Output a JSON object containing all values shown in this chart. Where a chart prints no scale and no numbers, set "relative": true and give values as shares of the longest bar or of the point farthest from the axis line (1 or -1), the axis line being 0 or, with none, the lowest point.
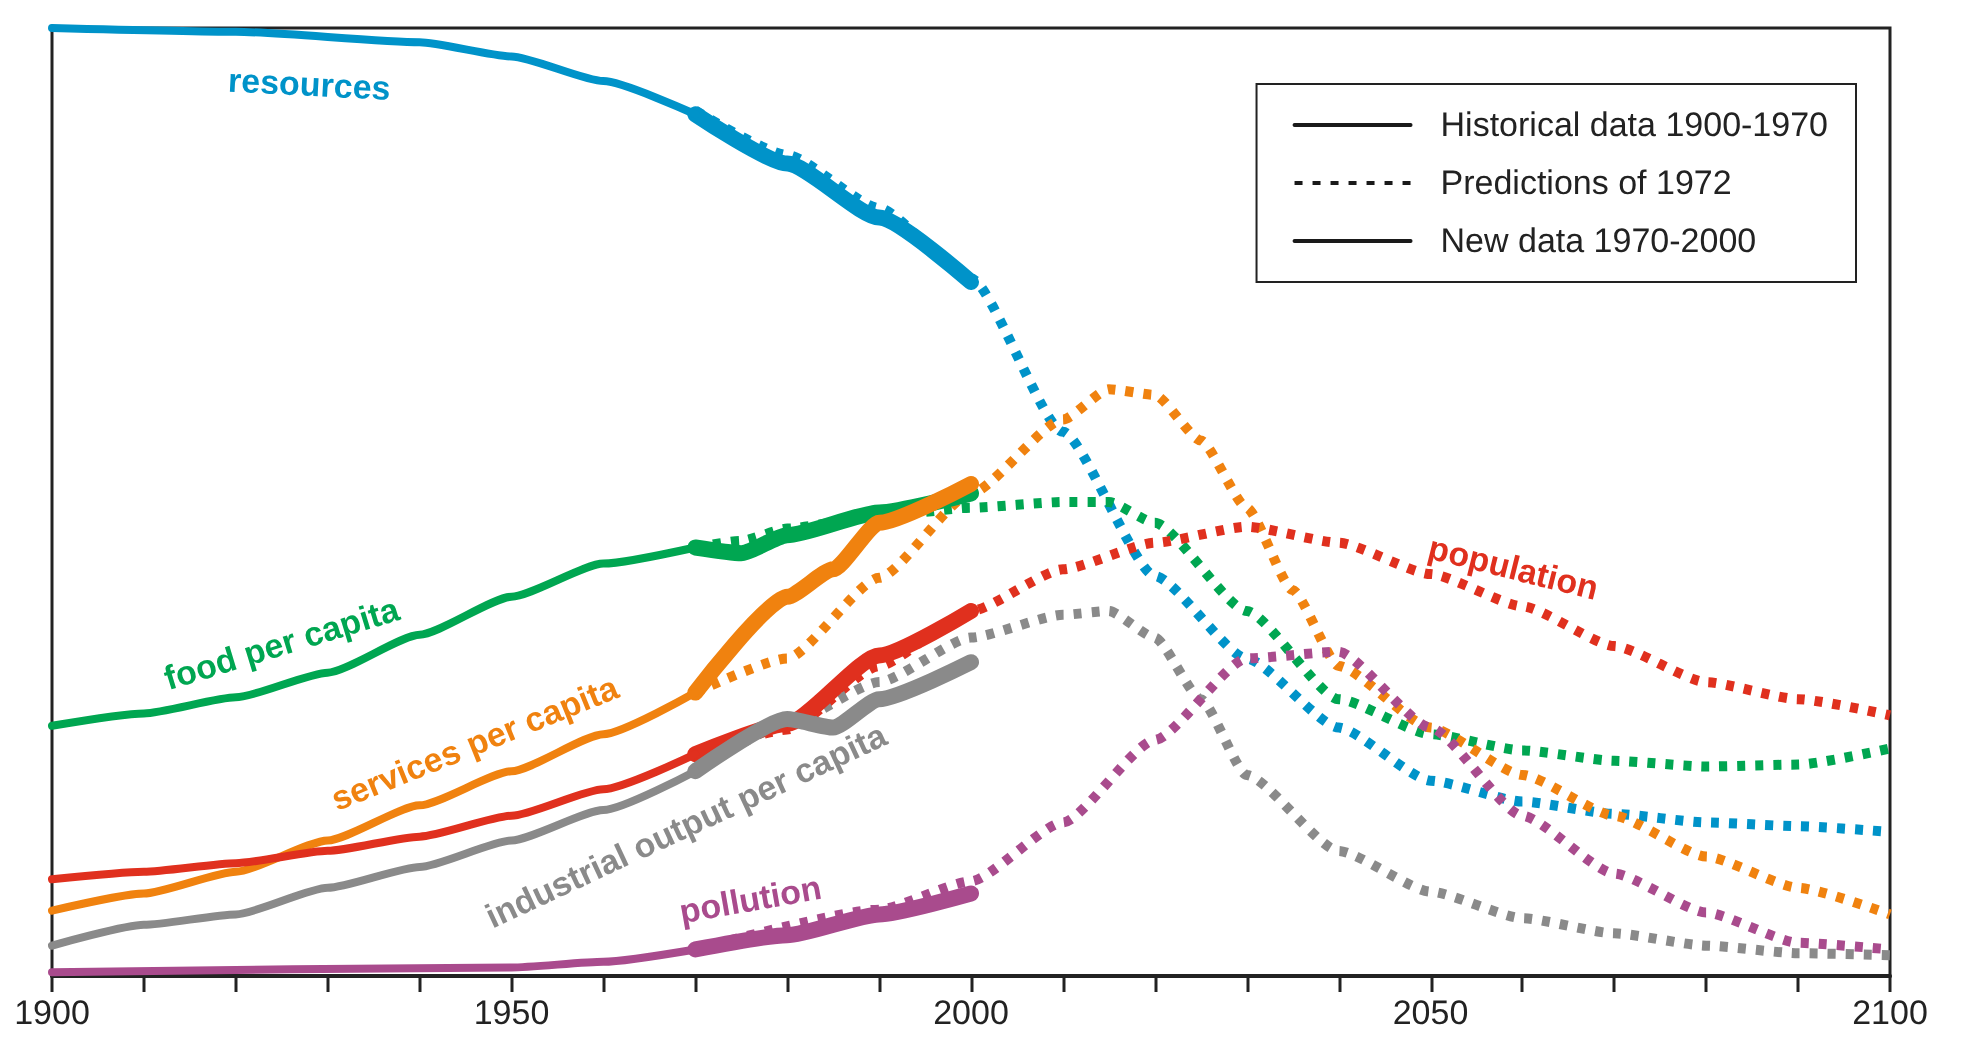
{
  "chart_data": {
    "type": "line",
    "relative": true,
    "xlim": [
      1900,
      2100
    ],
    "xticks": [
      1900,
      {
        "value": 1910,
        "label": null
      },
      {
        "value": 1920,
        "label": null
      },
      {
        "value": 1930,
        "label": null
      },
      {
        "value": 1940,
        "label": null
      },
      1950,
      {
        "value": 1960,
        "label": null
      },
      {
        "value": 1970,
        "label": null
      },
      {
        "value": 1980,
        "label": null
      },
      {
        "value": 1990,
        "label": null
      },
      2000,
      {
        "value": 2010,
        "label": null
      },
      {
        "value": 2020,
        "label": null
      },
      {
        "value": 2030,
        "label": null
      },
      {
        "value": 2040,
        "label": null
      },
      2050,
      {
        "value": 2060,
        "label": null
      },
      {
        "value": 2070,
        "label": null
      },
      {
        "value": 2080,
        "label": null
      },
      {
        "value": 2090,
        "label": null
      },
      2100
    ],
    "grid": false,
    "legend": "top right",
    "marker": "none",
    "series": [
      {
        "name": "Historical data 1900-1970",
        "color": "#1a1a1a",
        "line_style": "solid"
      },
      {
        "name": "Predictions of 1972",
        "color": "#1a1a1a",
        "line_style": "dotted"
      },
      {
        "name": "New data 1970-2000",
        "color": "#1a1a1a",
        "line_style": "solid"
      },
      {
        "color": "#0093c9",
        "line_style": "dotted",
        "x": [
          1970,
          1980,
          1990,
          2000,
          2010,
          2020,
          2030,
          2040,
          2050,
          2060,
          2070,
          2080,
          2090,
          2100
        ],
        "values": [
          0.913,
          0.866,
          0.81,
          0.736,
          0.574,
          0.422,
          0.335,
          0.262,
          0.206,
          0.184,
          0.171,
          0.162,
          0.158,
          0.152
        ]
      },
      {
        "color": "#00a651",
        "line_style": "dotted",
        "x": [
          1970,
          1975,
          1980,
          1990,
          2000,
          2010,
          2015,
          2020,
          2030,
          2040,
          2050,
          2060,
          2070,
          2080,
          2090,
          2100
        ],
        "values": [
          0.452,
          0.459,
          0.472,
          0.485,
          0.494,
          0.5,
          0.5,
          0.478,
          0.385,
          0.292,
          0.255,
          0.238,
          0.227,
          0.221,
          0.223,
          0.24
        ]
      },
      {
        "color": "#f0820f",
        "line_style": "dotted",
        "x": [
          1970,
          1980,
          1990,
          2000,
          2010,
          2015,
          2020,
          2025,
          2030,
          2035,
          2040,
          2050,
          2060,
          2070,
          2080,
          2090,
          2100
        ],
        "values": [
          0.299,
          0.335,
          0.42,
          0.509,
          0.587,
          0.619,
          0.613,
          0.565,
          0.494,
          0.407,
          0.327,
          0.262,
          0.212,
          0.169,
          0.126,
          0.093,
          0.065
        ]
      },
      {
        "name": "population",
        "color": "#e0301e",
        "line_style": "dotted",
        "x": [
          1970,
          1980,
          1990,
          2000,
          2010,
          2020,
          2030,
          2040,
          2050,
          2060,
          2070,
          2080,
          2090,
          2100
        ],
        "values": [
          0.234,
          0.26,
          0.327,
          0.385,
          0.429,
          0.457,
          0.474,
          0.457,
          0.424,
          0.39,
          0.348,
          0.31,
          0.292,
          0.275
        ]
      },
      {
        "color": "#8a8a8a",
        "line_style": "dotted",
        "x": [
          1970,
          1980,
          1990,
          2000,
          2010,
          2015,
          2020,
          2025,
          2030,
          2040,
          2050,
          2060,
          2070,
          2080,
          2090,
          2100
        ],
        "values": [
          0.216,
          0.266,
          0.31,
          0.357,
          0.381,
          0.385,
          0.357,
          0.292,
          0.212,
          0.132,
          0.089,
          0.061,
          0.045,
          0.032,
          0.024,
          0.022
        ]
      },
      {
        "color": "#a94b8d",
        "line_style": "dotted",
        "x": [
          1970,
          1990,
          2000,
          2010,
          2020,
          2030,
          2040,
          2050,
          2060,
          2070,
          2080,
          2090,
          2100
        ],
        "values": [
          0.028,
          0.07,
          0.1,
          0.162,
          0.249,
          0.335,
          0.342,
          0.262,
          0.169,
          0.108,
          0.067,
          0.035,
          0.028
        ]
      },
      {
        "name": "resources",
        "color": "#0093c9",
        "line_style": "solid",
        "x": [
          1900,
          1920,
          1940,
          1950,
          1960,
          1970
        ],
        "values": [
          1.0,
          0.996,
          0.985,
          0.97,
          0.944,
          0.909
        ]
      },
      {
        "name": "food per capita",
        "color": "#00a651",
        "line_style": "solid",
        "x": [
          1900,
          1910,
          1920,
          1930,
          1940,
          1950,
          1960,
          1970
        ],
        "values": [
          0.264,
          0.277,
          0.294,
          0.32,
          0.36,
          0.4,
          0.435,
          0.452
        ]
      },
      {
        "name": "services per capita",
        "color": "#f0820f",
        "line_style": "solid",
        "x": [
          1900,
          1910,
          1920,
          1930,
          1940,
          1950,
          1960,
          1970
        ],
        "values": [
          0.069,
          0.087,
          0.11,
          0.143,
          0.18,
          0.216,
          0.255,
          0.299
        ]
      },
      {
        "color": "#e0301e",
        "line_style": "solid",
        "x": [
          1900,
          1910,
          1920,
          1930,
          1940,
          1950,
          1960,
          1970
        ],
        "values": [
          0.102,
          0.11,
          0.119,
          0.132,
          0.147,
          0.169,
          0.197,
          0.234
        ]
      },
      {
        "name": "industrial output per capita",
        "color": "#8a8a8a",
        "line_style": "solid",
        "x": [
          1900,
          1910,
          1920,
          1930,
          1940,
          1950,
          1960,
          1970
        ],
        "values": [
          0.032,
          0.054,
          0.065,
          0.093,
          0.115,
          0.143,
          0.175,
          0.216
        ]
      },
      {
        "color": "#a94b8d",
        "line_style": "solid",
        "x": [
          1900,
          1950,
          1960,
          1970
        ],
        "values": [
          0.004,
          0.009,
          0.015,
          0.028
        ]
      },
      {
        "color": "#0093c9",
        "line_style": "solid",
        "x": [
          1970,
          1980,
          1990,
          2000
        ],
        "values": [
          0.909,
          0.857,
          0.8,
          0.732
        ]
      },
      {
        "color": "#00a651",
        "line_style": "solid",
        "x": [
          1970,
          1975,
          1980,
          1990,
          2000
        ],
        "values": [
          0.452,
          0.446,
          0.465,
          0.489,
          0.509
        ]
      },
      {
        "color": "#f0820f",
        "line_style": "solid",
        "x": [
          1970,
          1980,
          1985,
          1990,
          2000
        ],
        "values": [
          0.299,
          0.4,
          0.429,
          0.478,
          0.519
        ]
      },
      {
        "color": "#e0301e",
        "line_style": "solid",
        "x": [
          1970,
          1980,
          1990,
          2000
        ],
        "values": [
          0.234,
          0.266,
          0.338,
          0.385
        ]
      },
      {
        "color": "#8a8a8a",
        "line_style": "solid",
        "x": [
          1970,
          1980,
          1985,
          1990,
          2000
        ],
        "values": [
          0.216,
          0.271,
          0.262,
          0.292,
          0.331
        ]
      },
      {
        "name": "pollution",
        "color": "#a94b8d",
        "line_style": "solid",
        "x": [
          1970,
          1980,
          1990,
          2000
        ],
        "values": [
          0.028,
          0.043,
          0.065,
          0.087
        ]
      }
    ]
  }
}
